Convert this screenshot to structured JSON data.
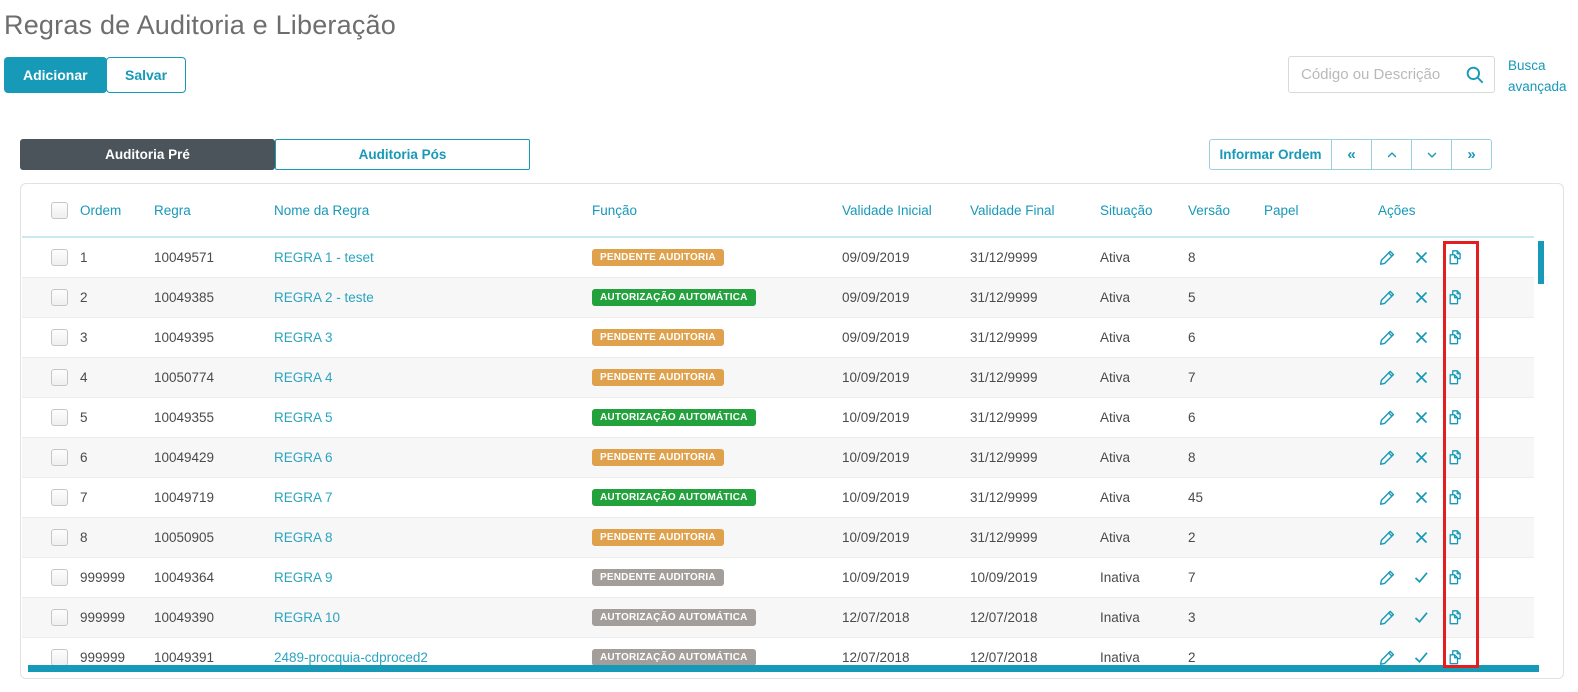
{
  "page": {
    "title": "Regras de Auditoria e Liberação"
  },
  "toolbar": {
    "add_label": "Adicionar",
    "save_label": "Salvar"
  },
  "search": {
    "placeholder": "Código ou Descrição",
    "advanced_label": "Busca avançada"
  },
  "tabs": {
    "pre_label": "Auditoria Pré",
    "pos_label": "Auditoria Pós",
    "active": "Auditoria Pré"
  },
  "order_controls": {
    "inform_order_label": "Informar Ordem",
    "first_symbol": "«",
    "last_symbol": "»"
  },
  "table": {
    "headers": [
      "Ordem",
      "Regra",
      "Nome da Regra",
      "Função",
      "Validade Inicial",
      "Validade Final",
      "Situação",
      "Versão",
      "Papel",
      "Ações"
    ],
    "rows": [
      {
        "ordem": "1",
        "regra": "10049571",
        "nome": "REGRA 1 - teset",
        "funcao": "PENDENTE AUDITORIA",
        "funcao_variant": "orange",
        "validade_inicial": "09/09/2019",
        "validade_final": "31/12/9999",
        "situacao": "Ativa",
        "versao": "8",
        "papel": "",
        "status_action": "deactivate"
      },
      {
        "ordem": "2",
        "regra": "10049385",
        "nome": "REGRA 2 - teste",
        "funcao": "AUTORIZAÇÃO AUTOMÁTICA",
        "funcao_variant": "green",
        "validade_inicial": "09/09/2019",
        "validade_final": "31/12/9999",
        "situacao": "Ativa",
        "versao": "5",
        "papel": "",
        "status_action": "deactivate"
      },
      {
        "ordem": "3",
        "regra": "10049395",
        "nome": "REGRA 3",
        "funcao": "PENDENTE AUDITORIA",
        "funcao_variant": "orange",
        "validade_inicial": "09/09/2019",
        "validade_final": "31/12/9999",
        "situacao": "Ativa",
        "versao": "6",
        "papel": "",
        "status_action": "deactivate"
      },
      {
        "ordem": "4",
        "regra": "10050774",
        "nome": "REGRA 4",
        "funcao": "PENDENTE AUDITORIA",
        "funcao_variant": "orange",
        "validade_inicial": "10/09/2019",
        "validade_final": "31/12/9999",
        "situacao": "Ativa",
        "versao": "7",
        "papel": "",
        "status_action": "deactivate"
      },
      {
        "ordem": "5",
        "regra": "10049355",
        "nome": "REGRA 5",
        "funcao": "AUTORIZAÇÃO AUTOMÁTICA",
        "funcao_variant": "green",
        "validade_inicial": "10/09/2019",
        "validade_final": "31/12/9999",
        "situacao": "Ativa",
        "versao": "6",
        "papel": "",
        "status_action": "deactivate"
      },
      {
        "ordem": "6",
        "regra": "10049429",
        "nome": "REGRA 6",
        "funcao": "PENDENTE AUDITORIA",
        "funcao_variant": "orange",
        "validade_inicial": "10/09/2019",
        "validade_final": "31/12/9999",
        "situacao": "Ativa",
        "versao": "8",
        "papel": "",
        "status_action": "deactivate"
      },
      {
        "ordem": "7",
        "regra": "10049719",
        "nome": "REGRA 7",
        "funcao": "AUTORIZAÇÃO AUTOMÁTICA",
        "funcao_variant": "green",
        "validade_inicial": "10/09/2019",
        "validade_final": "31/12/9999",
        "situacao": "Ativa",
        "versao": "45",
        "papel": "",
        "status_action": "deactivate"
      },
      {
        "ordem": "8",
        "regra": "10050905",
        "nome": "REGRA 8",
        "funcao": "PENDENTE AUDITORIA",
        "funcao_variant": "orange",
        "validade_inicial": "10/09/2019",
        "validade_final": "31/12/9999",
        "situacao": "Ativa",
        "versao": "2",
        "papel": "",
        "status_action": "deactivate"
      },
      {
        "ordem": "999999",
        "regra": "10049364",
        "nome": "REGRA 9",
        "funcao": "PENDENTE AUDITORIA",
        "funcao_variant": "gray",
        "validade_inicial": "10/09/2019",
        "validade_final": "10/09/2019",
        "situacao": "Inativa",
        "versao": "7",
        "papel": "",
        "status_action": "activate"
      },
      {
        "ordem": "999999",
        "regra": "10049390",
        "nome": "REGRA 10",
        "funcao": "AUTORIZAÇÃO AUTOMÁTICA",
        "funcao_variant": "gray",
        "validade_inicial": "12/07/2018",
        "validade_final": "12/07/2018",
        "situacao": "Inativa",
        "versao": "3",
        "papel": "",
        "status_action": "activate"
      },
      {
        "ordem": "999999",
        "regra": "10049391",
        "nome": "2489-procquia-cdproced2",
        "funcao": "AUTORIZAÇÃO AUTOMÁTICA",
        "funcao_variant": "gray",
        "validade_inicial": "12/07/2018",
        "validade_final": "12/07/2018",
        "situacao": "Inativa",
        "versao": "2",
        "papel": "",
        "status_action": "activate"
      }
    ]
  },
  "colors": {
    "accent_teal": "#1799b8",
    "tab_active_bg": "#4b545b",
    "badge_orange": "#dfa14c",
    "badge_green": "#23a13c",
    "badge_gray": "#a39e99",
    "highlight_red": "#e31e1e"
  }
}
